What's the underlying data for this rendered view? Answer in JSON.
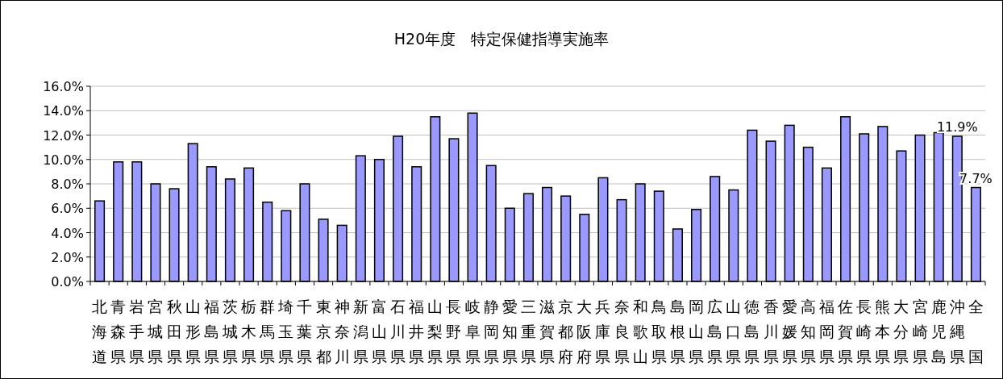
{
  "chart_data": {
    "type": "bar",
    "title": "H20年度　特定保健指導実施率",
    "categories": [
      "北海道",
      "青森県",
      "岩手県",
      "宮城県",
      "秋田県",
      "山形県",
      "福島県",
      "茨城県",
      "栃木県",
      "群馬県",
      "埼玉県",
      "千葉県",
      "東京都",
      "神奈川",
      "新潟県",
      "富山県",
      "石川県",
      "福井県",
      "山梨県",
      "長野県",
      "岐阜県",
      "静岡県",
      "愛知県",
      "三重県",
      "滋賀県",
      "京都府",
      "大阪府",
      "兵庫県",
      "奈良県",
      "和歌山",
      "鳥取県",
      "島根県",
      "岡山県",
      "広島県",
      "山口県",
      "徳島県",
      "香川県",
      "愛媛県",
      "高知県",
      "福岡県",
      "佐賀県",
      "長崎県",
      "熊本県",
      "大分県",
      "宮崎県",
      "鹿児島",
      "沖縄県",
      "全国"
    ],
    "values": [
      6.6,
      9.8,
      9.8,
      8.0,
      7.6,
      11.3,
      9.4,
      8.4,
      9.3,
      6.5,
      5.8,
      8.0,
      5.1,
      4.6,
      10.3,
      10.0,
      11.9,
      9.4,
      13.5,
      11.7,
      13.8,
      9.5,
      6.0,
      7.2,
      7.7,
      7.0,
      5.5,
      8.5,
      6.7,
      8.0,
      7.4,
      4.3,
      5.9,
      8.6,
      7.5,
      12.4,
      11.5,
      12.8,
      11.0,
      9.3,
      13.5,
      12.1,
      12.7,
      10.7,
      12.0,
      12.2,
      11.9,
      7.7
    ],
    "value_labels": [
      null,
      null,
      null,
      null,
      null,
      null,
      null,
      null,
      null,
      null,
      null,
      null,
      null,
      null,
      null,
      null,
      null,
      null,
      null,
      null,
      null,
      null,
      null,
      null,
      null,
      null,
      null,
      null,
      null,
      null,
      null,
      null,
      null,
      null,
      null,
      null,
      null,
      null,
      null,
      null,
      null,
      null,
      null,
      null,
      null,
      null,
      "11.9%",
      "7.7%"
    ],
    "color": "#9999ff",
    "ylim": [
      0,
      16
    ],
    "yticks": [
      {
        "value": 0,
        "label": "0.0%"
      },
      {
        "value": 2,
        "label": "2.0%"
      },
      {
        "value": 4,
        "label": "4.0%"
      },
      {
        "value": 6,
        "label": "6.0%"
      },
      {
        "value": 8,
        "label": "8.0%"
      },
      {
        "value": 10,
        "label": "10.0%"
      },
      {
        "value": 12,
        "label": "12.0%"
      },
      {
        "value": 14,
        "label": "14.0%"
      },
      {
        "value": 16,
        "label": "16.0%"
      }
    ],
    "grid": "y"
  }
}
